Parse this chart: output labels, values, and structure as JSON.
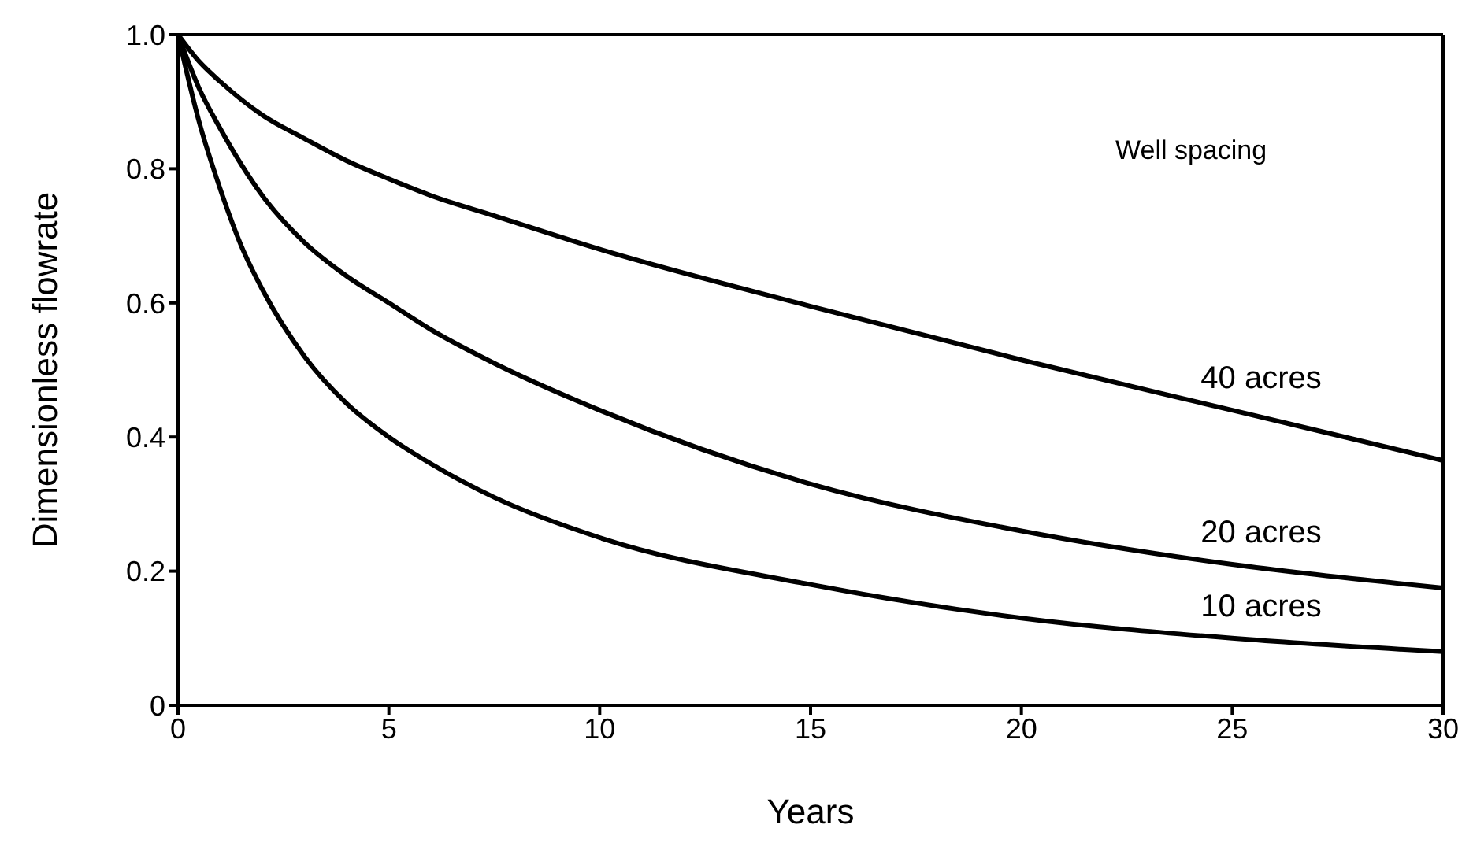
{
  "chart_data": {
    "type": "line",
    "xlabel": "Years",
    "ylabel": "Dimensionless  flowrate",
    "annotations": [
      "Well spacing"
    ],
    "xlim": [
      0,
      30
    ],
    "xticks": [
      0,
      5,
      10,
      15,
      20,
      25,
      30
    ],
    "ylim": [
      0,
      1.0
    ],
    "yticks": [
      {
        "value": 0,
        "label": "0"
      },
      0.2,
      0.4,
      0.6,
      0.8,
      {
        "value": 1,
        "label": "1.0"
      }
    ],
    "marker": "none",
    "line_style": "solid",
    "series": [
      {
        "name": "40 acres",
        "color": "#000000",
        "x": [
          0,
          0.5,
          1,
          2,
          3,
          4,
          5,
          6,
          7.5,
          10,
          15,
          20,
          25,
          30
        ],
        "values": [
          1.0,
          0.96,
          0.93,
          0.88,
          0.845,
          0.812,
          0.785,
          0.76,
          0.73,
          0.68,
          0.595,
          0.515,
          0.44,
          0.365
        ]
      },
      {
        "name": "20 acres",
        "color": "#000000",
        "x": [
          0,
          0.5,
          1,
          2,
          3,
          4,
          5,
          6,
          7.5,
          10,
          15,
          20,
          25,
          30
        ],
        "values": [
          1.0,
          0.92,
          0.86,
          0.76,
          0.69,
          0.64,
          0.6,
          0.56,
          0.51,
          0.44,
          0.33,
          0.26,
          0.21,
          0.175
        ]
      },
      {
        "name": "10 acres",
        "color": "#000000",
        "x": [
          0,
          0.5,
          1,
          1.5,
          2,
          3,
          4,
          5,
          6,
          7.5,
          10,
          15,
          20,
          25,
          30
        ],
        "values": [
          1.0,
          0.87,
          0.77,
          0.685,
          0.62,
          0.52,
          0.45,
          0.4,
          0.36,
          0.31,
          0.25,
          0.18,
          0.13,
          0.1,
          0.08
        ]
      }
    ]
  }
}
